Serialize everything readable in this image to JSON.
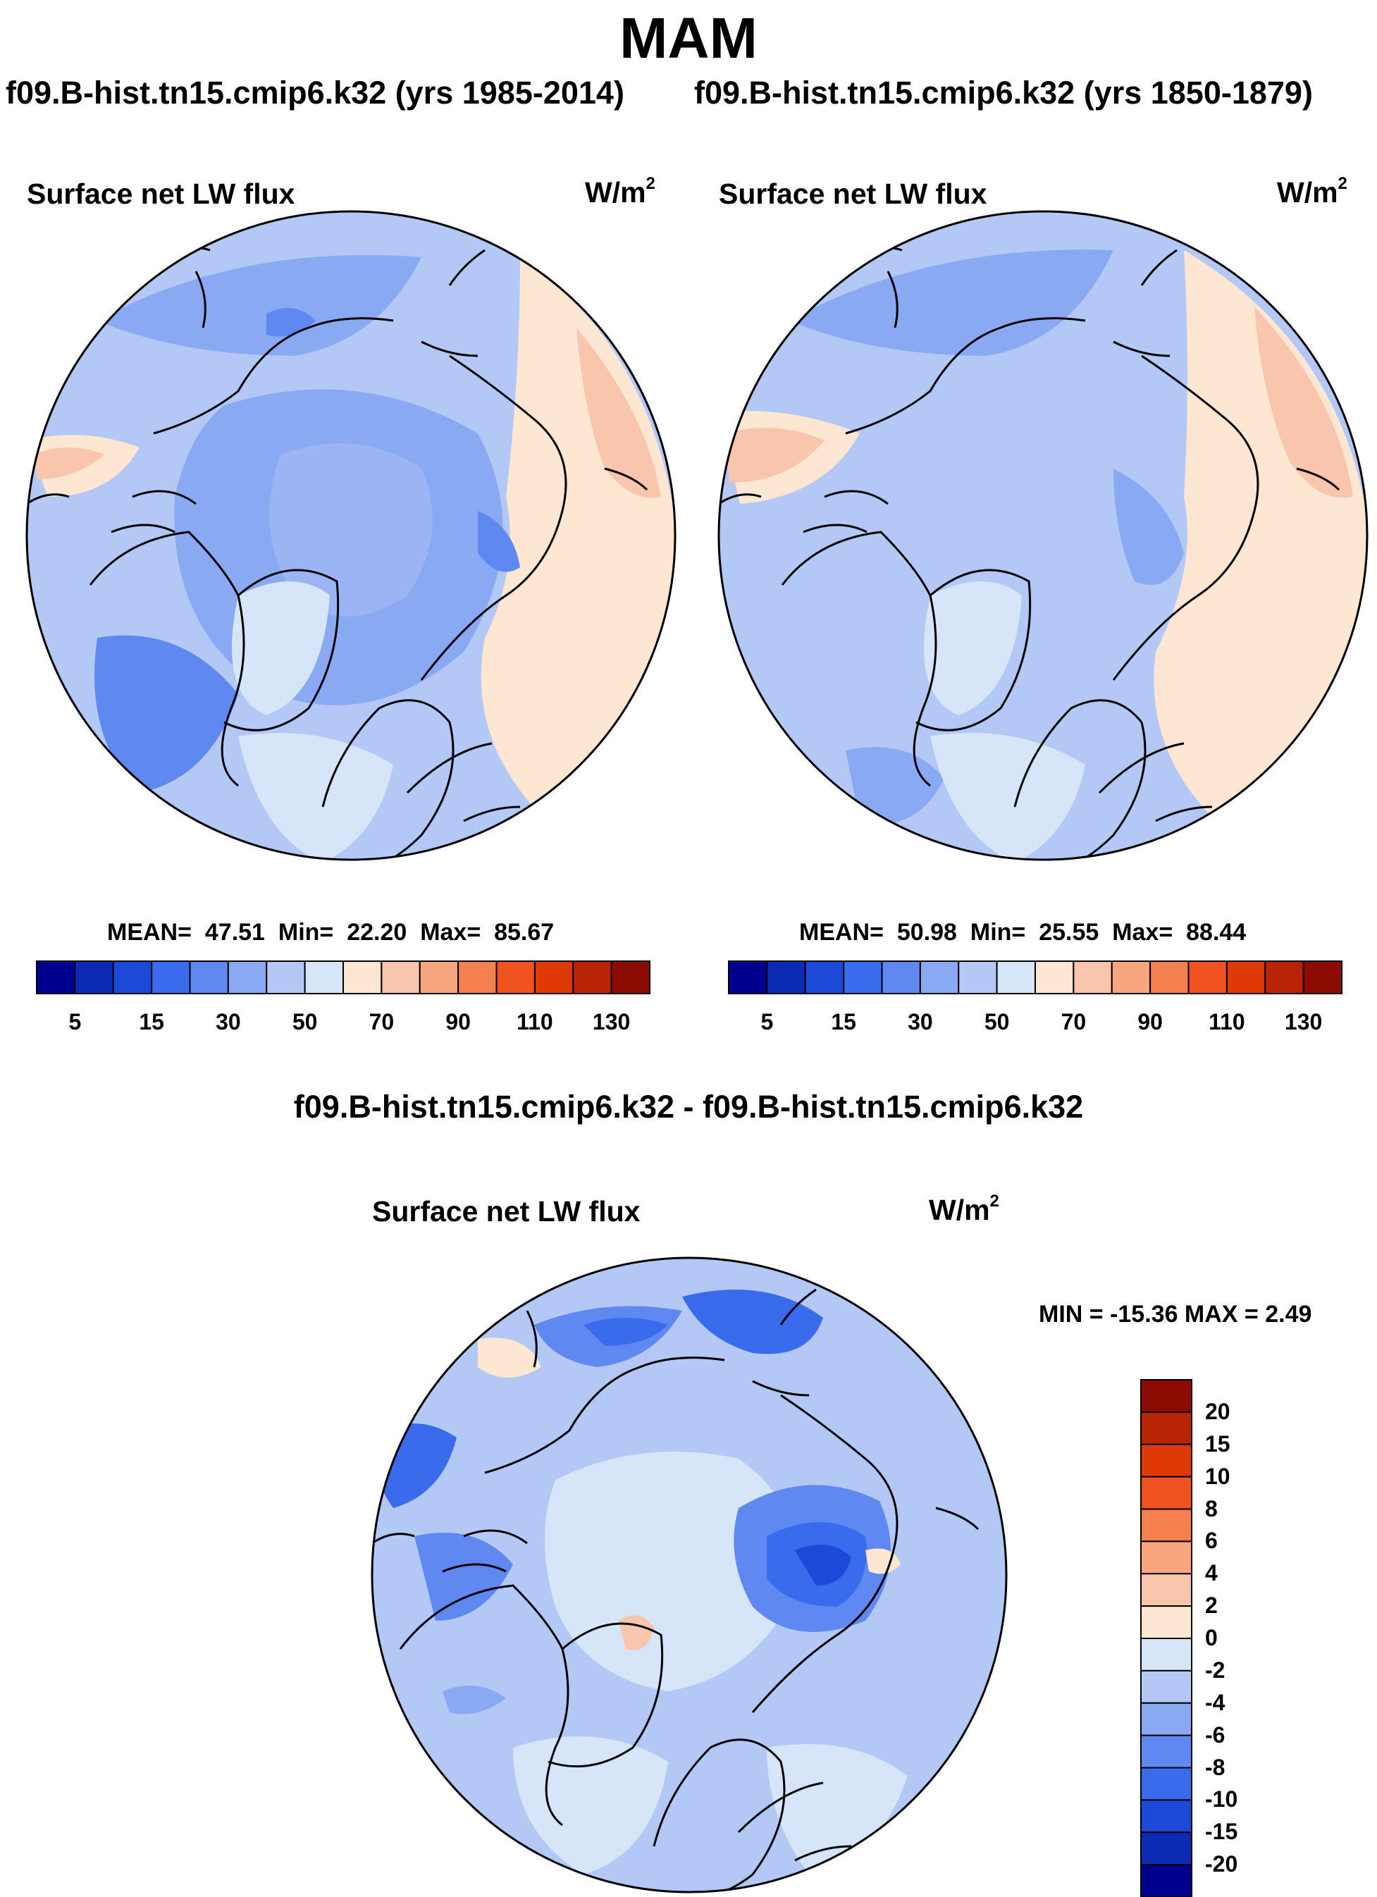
{
  "header": {
    "season": "MAM",
    "left_case": "f09.B-hist.tn15.cmip6.k32 (yrs 1985-2014)",
    "right_case": "f09.B-hist.tn15.cmip6.k32 (yrs 1850-1879)",
    "diff_title": "f09.B-hist.tn15.cmip6.k32 - f09.B-hist.tn15.cmip6.k32"
  },
  "panels": {
    "left": {
      "variable": "Surface net LW flux",
      "units": "W/m",
      "units_exp": "2",
      "stats": {
        "mean_label": "MEAN=",
        "mean": "47.51",
        "min_label": "Min=",
        "min": "22.20",
        "max_label": "Max=",
        "max": "85.67"
      }
    },
    "right": {
      "variable": "Surface net LW flux",
      "units": "W/m",
      "units_exp": "2",
      "stats": {
        "mean_label": "MEAN=",
        "mean": "50.98",
        "min_label": "Min=",
        "min": "25.55",
        "max_label": "Max=",
        "max": "88.44"
      }
    },
    "diff": {
      "variable": "Surface net LW flux",
      "units": "W/m",
      "units_exp": "2",
      "minmax": "MIN = -15.36 MAX =   2.49"
    }
  },
  "colorbar_abs": {
    "colors": [
      "#00008e",
      "#0c2bb5",
      "#1c49d8",
      "#3a6bec",
      "#5f89f0",
      "#89a9f3",
      "#b4c8f5",
      "#d7e5f9",
      "#fde6d2",
      "#f9c6ad",
      "#f7a67f",
      "#f5804f",
      "#f0531f",
      "#df3a06",
      "#b92404",
      "#8c0b03"
    ],
    "labels": [
      "5",
      "15",
      "30",
      "50",
      "70",
      "90",
      "110",
      "130"
    ]
  },
  "colorbar_diff": {
    "colors": [
      "#8c0b03",
      "#b92404",
      "#df3a06",
      "#f0531f",
      "#f5804f",
      "#f7a67f",
      "#f9c6ad",
      "#fde6d2",
      "#d7e5f9",
      "#b4c8f5",
      "#89a9f3",
      "#5f89f0",
      "#3a6bec",
      "#1c49d8",
      "#0c2bb5",
      "#00008e"
    ],
    "labels": [
      "20",
      "15",
      "10",
      "8",
      "6",
      "4",
      "2",
      "0",
      "-2",
      "-4",
      "-6",
      "-8",
      "-10",
      "-15",
      "-20"
    ]
  }
}
